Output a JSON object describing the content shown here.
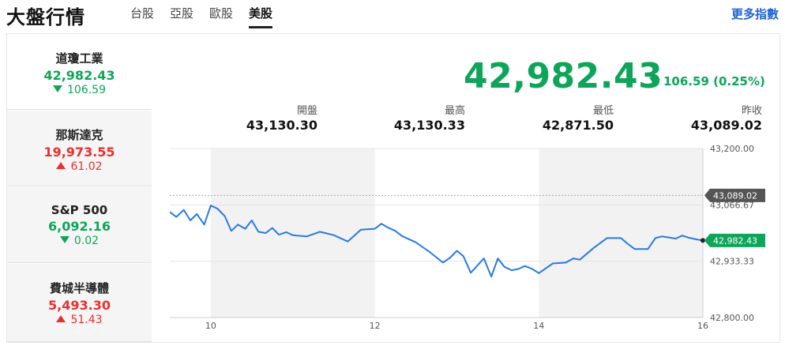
{
  "header": {
    "title": "大盤行情",
    "tabs": [
      {
        "label": "台股",
        "active": false
      },
      {
        "label": "亞股",
        "active": false
      },
      {
        "label": "歐股",
        "active": false
      },
      {
        "label": "美股",
        "active": true
      }
    ],
    "more_link": "更多指數"
  },
  "indices": [
    {
      "name": "道瓊工業",
      "value": "42,982.43",
      "change": "106.59",
      "direction": "down",
      "active": true
    },
    {
      "name": "那斯達克",
      "value": "19,973.55",
      "change": "61.02",
      "direction": "up",
      "active": false
    },
    {
      "name": "S&P 500",
      "value": "6,092.16",
      "change": "0.02",
      "direction": "down",
      "active": false
    },
    {
      "name": "費城半導體",
      "value": "5,493.30",
      "change": "51.43",
      "direction": "up",
      "active": false
    }
  ],
  "summary": {
    "value": "42,982.43",
    "change": "106.59 (0.25%)",
    "direction": "down"
  },
  "stats": [
    {
      "label": "開盤",
      "value": "43,130.30"
    },
    {
      "label": "最高",
      "value": "43,130.33"
    },
    {
      "label": "最低",
      "value": "42,871.50"
    },
    {
      "label": "昨收",
      "value": "43,089.02"
    }
  ],
  "colors": {
    "up": "#eb2f2f",
    "down": "#0ea55a",
    "line": "#2a79e3",
    "link": "#1d62d2",
    "shade": "#f2f2f2"
  },
  "chart_data": {
    "type": "line",
    "x_ticks": [
      "10",
      "12",
      "14",
      "16"
    ],
    "y_ticks": [
      "43,200.00",
      "43,066.67",
      "42,933.33",
      "42,800.00"
    ],
    "ylim": [
      42800,
      43200
    ],
    "xlim": [
      9.5,
      16
    ],
    "shaded_hours": [
      [
        10,
        12
      ],
      [
        14,
        16
      ]
    ],
    "reference": {
      "label": "43,089.02",
      "value": 43089.02
    },
    "last": {
      "label": "42,982.43",
      "value": 42982.43
    },
    "series": [
      {
        "x": [
          9.5,
          9.58,
          9.67,
          9.75,
          9.83,
          9.92,
          10.0,
          10.08,
          10.17,
          10.25,
          10.33,
          10.42,
          10.5,
          10.58,
          10.67,
          10.75,
          10.83,
          10.92,
          11.0,
          11.17,
          11.33,
          11.5,
          11.67,
          11.83,
          12.0,
          12.08,
          12.17,
          12.25,
          12.33,
          12.5,
          12.67,
          12.83,
          12.92,
          13.0,
          13.08,
          13.17,
          13.33,
          13.42,
          13.5,
          13.58,
          13.67,
          13.75,
          13.83,
          13.92,
          14.0,
          14.17,
          14.33,
          14.42,
          14.5,
          14.67,
          14.83,
          15.0,
          15.08,
          15.17,
          15.33,
          15.42,
          15.5,
          15.67,
          15.75,
          15.83,
          15.92,
          16.0
        ],
        "y": [
          43050,
          43038,
          43055,
          43030,
          43045,
          43020,
          43065,
          43058,
          43040,
          43005,
          43020,
          43010,
          43030,
          43003,
          43000,
          43012,
          42996,
          43002,
          42995,
          42992,
          43003,
          42995,
          42980,
          43008,
          43010,
          43022,
          43012,
          43005,
          42993,
          42978,
          42955,
          42930,
          42942,
          42958,
          42945,
          42906,
          42940,
          42897,
          42940,
          42920,
          42912,
          42915,
          42922,
          42915,
          42905,
          42928,
          42930,
          42940,
          42937,
          42965,
          42988,
          42988,
          42975,
          42962,
          42962,
          42988,
          42992,
          42987,
          42994,
          42989,
          42985,
          42982.43
        ]
      }
    ]
  }
}
